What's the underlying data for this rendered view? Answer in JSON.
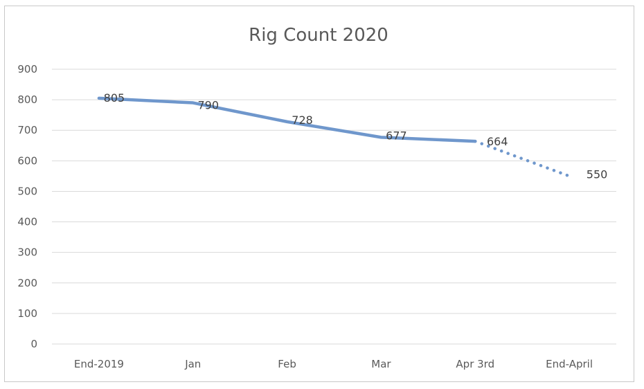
{
  "chart_data": {
    "type": "line",
    "title": "Rig Count 2020",
    "xlabel": "",
    "ylabel": "",
    "categories": [
      "End-2019",
      "Jan",
      "Feb",
      "Mar",
      "Apr 3rd",
      "End-April"
    ],
    "values": [
      805,
      790,
      728,
      677,
      664,
      550
    ],
    "value_labels": [
      "805",
      "790",
      "728",
      "677",
      "664",
      "550"
    ],
    "ylim": [
      0,
      900
    ],
    "yticks": [
      0,
      100,
      200,
      300,
      400,
      500,
      600,
      700,
      800,
      900
    ],
    "grid": true,
    "legend": "none",
    "solid_through_index": 4,
    "projected_from_index": 4,
    "line_color": "#6f97cc",
    "projection_style": "dotted"
  }
}
